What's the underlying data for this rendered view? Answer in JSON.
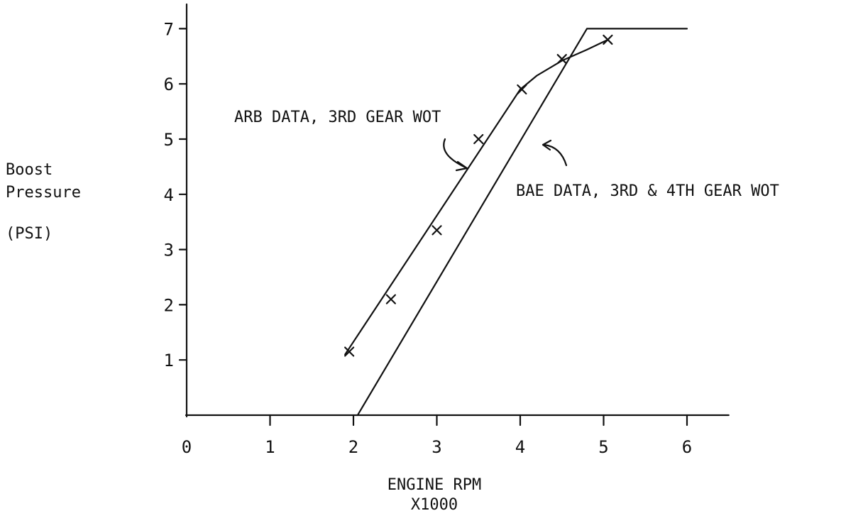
{
  "chart_data": {
    "type": "line",
    "title": "",
    "ylabel_lines": [
      "Boost",
      "Pressure",
      "(PSI)"
    ],
    "xlabel_lines": [
      "ENGINE RPM",
      "X1000"
    ],
    "x_ticks": [
      "0",
      "1",
      "2",
      "3",
      "4",
      "5",
      "6"
    ],
    "y_ticks": [
      "1",
      "2",
      "3",
      "4",
      "5",
      "6",
      "7"
    ],
    "xlim": [
      0,
      6.5
    ],
    "ylim": [
      0,
      7.3
    ],
    "grid": false,
    "series": [
      {
        "name": "ARB DATA, 3RD GEAR WOT",
        "style": "straight-line-with-points",
        "fit_line": [
          [
            1.9,
            1.1
          ],
          [
            4.0,
            5.9
          ]
        ],
        "curve": [
          [
            4.0,
            5.9
          ],
          [
            4.2,
            6.15
          ],
          [
            4.5,
            6.42
          ],
          [
            4.8,
            6.62
          ],
          [
            5.05,
            6.8
          ]
        ],
        "points": [
          {
            "x": 1.95,
            "y": 1.15
          },
          {
            "x": 2.45,
            "y": 2.1
          },
          {
            "x": 3.0,
            "y": 3.35
          },
          {
            "x": 3.5,
            "y": 5.0
          },
          {
            "x": 4.02,
            "y": 5.9
          },
          {
            "x": 4.5,
            "y": 6.45
          },
          {
            "x": 5.05,
            "y": 6.8
          }
        ]
      },
      {
        "name": "BAE DATA, 3RD & 4TH GEAR WOT",
        "style": "straight-line",
        "line": [
          [
            2.05,
            0.0
          ],
          [
            4.8,
            7.0
          ],
          [
            6.0,
            7.0
          ]
        ]
      }
    ],
    "annotations": [
      {
        "text": "ARB DATA, 3RD GEAR WOT",
        "series": 0
      },
      {
        "text": "BAE DATA, 3RD & 4TH GEAR WOT",
        "series": 1
      }
    ]
  }
}
